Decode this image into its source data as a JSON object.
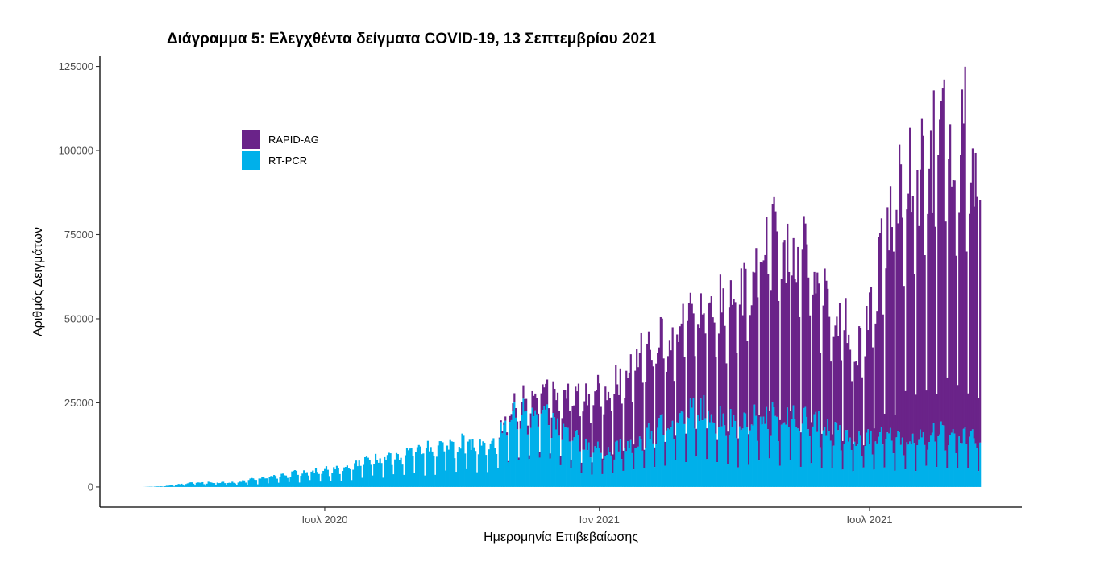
{
  "chart_data": {
    "type": "bar",
    "stacked": true,
    "title": "Διάγραμμα 5: Ελεγχθέντα δείγματα COVID-19, 13 Σεπτεμβρίου 2021",
    "xlabel": "Ημερομηνία Επιβεβαίωσης",
    "ylabel": "Αριθμός Δειγμάτων",
    "x_start_date": "2020-03-01",
    "x_end_date": "2021-09-13",
    "ylim": [
      -6000,
      128000
    ],
    "yticks": [
      0,
      25000,
      50000,
      75000,
      100000,
      125000
    ],
    "ytick_labels": [
      "0",
      "25000",
      "50000",
      "75000",
      "100000",
      "125000"
    ],
    "xticks": [
      {
        "date": "2020-07-01",
        "label": "Ιουλ 2020"
      },
      {
        "date": "2021-01-01",
        "label": "Ιαν 2021"
      },
      {
        "date": "2021-07-01",
        "label": "Ιουλ 2021"
      }
    ],
    "grid": false,
    "legend_position": "top-left",
    "series": [
      {
        "name": "RAPID-AG",
        "color": "#6a2389"
      },
      {
        "name": "RT-PCR",
        "color": "#00b0ea"
      }
    ],
    "pcr_anchors": [
      [
        "2020-03-01",
        0
      ],
      [
        "2020-03-15",
        200
      ],
      [
        "2020-04-01",
        1200
      ],
      [
        "2020-05-01",
        1500
      ],
      [
        "2020-06-01",
        3500
      ],
      [
        "2020-06-20",
        5000
      ],
      [
        "2020-07-15",
        5500
      ],
      [
        "2020-08-01",
        8500
      ],
      [
        "2020-08-20",
        9500
      ],
      [
        "2020-09-10",
        12000
      ],
      [
        "2020-10-01",
        14000
      ],
      [
        "2020-10-20",
        11500
      ],
      [
        "2020-11-01",
        21000
      ],
      [
        "2020-11-20",
        25000
      ],
      [
        "2020-12-01",
        19500
      ],
      [
        "2020-12-20",
        13500
      ],
      [
        "2021-01-05",
        11000
      ],
      [
        "2021-01-25",
        13000
      ],
      [
        "2021-02-15",
        20000
      ],
      [
        "2021-03-10",
        24000
      ],
      [
        "2021-04-01",
        20000
      ],
      [
        "2021-05-01",
        22000
      ],
      [
        "2021-05-25",
        20000
      ],
      [
        "2021-06-20",
        14000
      ],
      [
        "2021-07-10",
        15500
      ],
      [
        "2021-08-01",
        15000
      ],
      [
        "2021-08-20",
        17000
      ],
      [
        "2021-09-13",
        14000
      ]
    ],
    "rapid_anchors": [
      [
        "2020-03-01",
        0
      ],
      [
        "2020-10-25",
        0
      ],
      [
        "2020-11-05",
        2500
      ],
      [
        "2020-12-01",
        8000
      ],
      [
        "2021-01-05",
        18000
      ],
      [
        "2021-02-01",
        27000
      ],
      [
        "2021-02-20",
        26000
      ],
      [
        "2021-03-20",
        33000
      ],
      [
        "2021-04-10",
        42000
      ],
      [
        "2021-04-25",
        55000
      ],
      [
        "2021-05-15",
        52000
      ],
      [
        "2021-06-10",
        35000
      ],
      [
        "2021-06-25",
        28000
      ],
      [
        "2021-07-05",
        46000
      ],
      [
        "2021-07-20",
        75000
      ],
      [
        "2021-08-10",
        82000
      ],
      [
        "2021-08-25",
        92000
      ],
      [
        "2021-09-13",
        85000
      ]
    ]
  }
}
